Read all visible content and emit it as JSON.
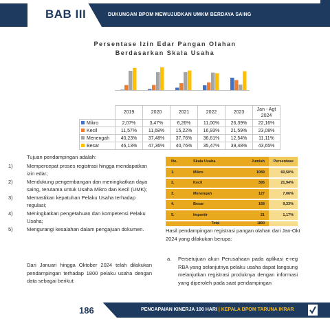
{
  "header": {
    "chapter": "BAB III",
    "title": "DUKUNGAN BPOM MEWUJUDKAN UMKM BERDAYA SAING"
  },
  "chart": {
    "title_line1": "Persentase Izin Edar Pangan Olahan",
    "title_line2": "Berdasarkan Skala Usaha",
    "colors": [
      "#4472c4",
      "#ed7d31",
      "#a5a5a5",
      "#ffc000"
    ]
  },
  "chart_data": {
    "type": "bar",
    "title": "Persentase Izin Edar Pangan Olahan Berdasarkan Skala Usaha",
    "categories": [
      "2019",
      "2020",
      "2021",
      "2022",
      "2023",
      "Jan - Agt 2024"
    ],
    "category_labels_display": [
      [
        "2019"
      ],
      [
        "2020"
      ],
      [
        "2021"
      ],
      [
        "2022"
      ],
      [
        "2023"
      ],
      [
        "Jan - Agt",
        "2024"
      ]
    ],
    "series": [
      {
        "name": "Mikro",
        "values": [
          2.07,
          3.47,
          6.26,
          11.0,
          26.39,
          22.16
        ],
        "labels": [
          "2,07%",
          "3,47%",
          "6,26%",
          "11,00%",
          "26,39%",
          "22,16%"
        ]
      },
      {
        "name": "Kecil",
        "values": [
          11.57,
          11.68,
          15.22,
          16.93,
          21.59,
          23.08
        ],
        "labels": [
          "11,57%",
          "11,68%",
          "15,22%",
          "16,93%",
          "21,59%",
          "23,08%"
        ]
      },
      {
        "name": "Menengah",
        "values": [
          40.23,
          37.48,
          37.76,
          36.61,
          12.54,
          11.11
        ],
        "labels": [
          "40,23%",
          "37,48%",
          "37,76%",
          "36,61%",
          "12,54%",
          "11,11%"
        ]
      },
      {
        "name": "Besar",
        "values": [
          46.13,
          47.36,
          40.76,
          35.47,
          39.48,
          43.65
        ],
        "labels": [
          "46,13%",
          "47,36%",
          "40,76%",
          "35,47%",
          "39,48%",
          "43,65%"
        ]
      }
    ],
    "ylim": [
      0,
      50
    ],
    "grid": false,
    "legend": "data-table"
  },
  "left": {
    "intro": "Tujuan pendampingan adalah:",
    "goals": [
      {
        "num": "1)",
        "text": "Mempercepat proses registrasi hingga mendapatkan izin edar;"
      },
      {
        "num": "2)",
        "text": "Mendukung pengembangan dan meningkatkan daya saing, terutama untuk Usaha Mikro dan Kecil (UMK);"
      },
      {
        "num": "3)",
        "text": "Memastikan kepatuhan Pelaku Usaha terhadap regulasi;"
      },
      {
        "num": "4)",
        "text": "Meningkatkan pengetahuan dan kompetensi Pelaku Usaha;"
      },
      {
        "num": "5)",
        "text": "Mengurangi kesalahan dalam pengajuan dokumen."
      }
    ],
    "paragraph": "Dari Januari hingga Oktober 2024 telah dilakukan pendampingan terhadap 1800 pelaku usaha dengan data sebagai berikut:"
  },
  "table": {
    "headers": [
      "No.",
      "Skala Usaha",
      "Jumlah",
      "Persentase"
    ],
    "rows": [
      [
        "1.",
        "Mikro",
        "1089",
        "60,50%"
      ],
      [
        "2.",
        "Kecil",
        "395",
        "21,94%"
      ],
      [
        "3.",
        "Menengah",
        "127",
        "7,06%"
      ],
      [
        "4.",
        "Besar",
        "168",
        "9,33%"
      ],
      [
        "5.",
        "Importir",
        "21",
        "1,17%"
      ]
    ],
    "total_label": "Total",
    "total_value": "1800"
  },
  "right": {
    "paragraph": "Hasil pendampingan registrasi pangan olahan dari Jan-Okt 2024 yang dilakukan berupa:",
    "item_marker": "a.",
    "item_text": "Persetujuan akun Perusahaan pada aplikasi e-reg RBA yang selanjutnya pelaku usaha dapat langsung melanjutkan registrasi produknya dengan informasi yang diperoleh pada saat pendampingan"
  },
  "footer": {
    "page": "186",
    "text_main": "PENCAPAIAN KINERJA 100 HARI",
    "separator": " | ",
    "text_accent": "KEPALA BPOM TARUNA IKRAR"
  }
}
